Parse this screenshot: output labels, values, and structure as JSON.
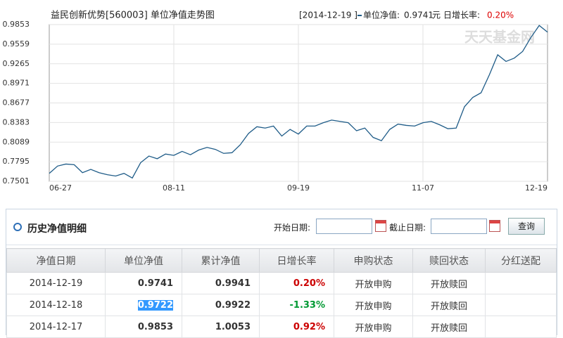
{
  "chart_data": {
    "type": "line",
    "title": "益民创新优势[560003] 单位净值走势图",
    "legend_date": "[2014-12-19 ]",
    "legend_nav_label": "单位净值:",
    "legend_nav": "0.9741",
    "legend_unit": "元",
    "legend_change_label": "日增长率:",
    "legend_change": "0.20%",
    "watermark": "天天基金网",
    "categories": [
      "06-27",
      null,
      null,
      null,
      null,
      null,
      null,
      null,
      null,
      null,
      null,
      null,
      null,
      null,
      null,
      "08-11",
      null,
      null,
      null,
      null,
      null,
      null,
      null,
      null,
      null,
      null,
      null,
      null,
      null,
      null,
      "09-19",
      null,
      null,
      null,
      null,
      null,
      null,
      null,
      null,
      null,
      null,
      null,
      null,
      null,
      null,
      "11-07",
      null,
      null,
      null,
      null,
      null,
      null,
      null,
      null,
      null,
      null,
      null,
      null,
      null,
      null,
      "12-19"
    ],
    "series": [
      {
        "name": "单位净值",
        "color": "#1f5c88",
        "values": [
          0.762,
          0.773,
          0.776,
          0.775,
          0.763,
          0.768,
          0.763,
          0.76,
          0.758,
          0.762,
          0.755,
          0.778,
          0.788,
          0.784,
          0.791,
          0.789,
          0.795,
          0.79,
          0.797,
          0.801,
          0.798,
          0.792,
          0.793,
          0.805,
          0.822,
          0.832,
          0.83,
          0.833,
          0.818,
          0.828,
          0.821,
          0.833,
          0.833,
          0.838,
          0.842,
          0.84,
          0.838,
          0.826,
          0.83,
          0.816,
          0.811,
          0.828,
          0.836,
          0.834,
          0.833,
          0.838,
          0.84,
          0.835,
          0.829,
          0.83,
          0.862,
          0.876,
          0.883,
          0.91,
          0.94,
          0.93,
          0.935,
          0.945,
          0.966,
          0.984,
          0.974
        ]
      }
    ],
    "ylim": [
      0.7501,
      0.9853
    ],
    "yticks": [
      0.9853,
      0.9559,
      0.9265,
      0.8971,
      0.8677,
      0.8383,
      0.8089,
      0.7795,
      0.7501
    ],
    "grid": true
  },
  "panel": {
    "title": "历史净值明细",
    "start_label": "开始日期:",
    "end_label": "截止日期:",
    "button": "查询"
  },
  "table": {
    "headers": [
      "净值日期",
      "单位净值",
      "累计净值",
      "日增长率",
      "申购状态",
      "赎回状态",
      "分红送配"
    ],
    "rows": [
      [
        "2014-12-19",
        "0.9741",
        "0.9941",
        "0.20%",
        "开放申购",
        "开放赎回"
      ],
      [
        "2014-12-18",
        "0.9722",
        "0.9922",
        "-1.33%",
        "开放申购",
        "开放赎回"
      ],
      [
        "2014-12-17",
        "0.9853",
        "1.0053",
        "0.92%",
        "开放申购",
        "开放赎回"
      ]
    ]
  }
}
